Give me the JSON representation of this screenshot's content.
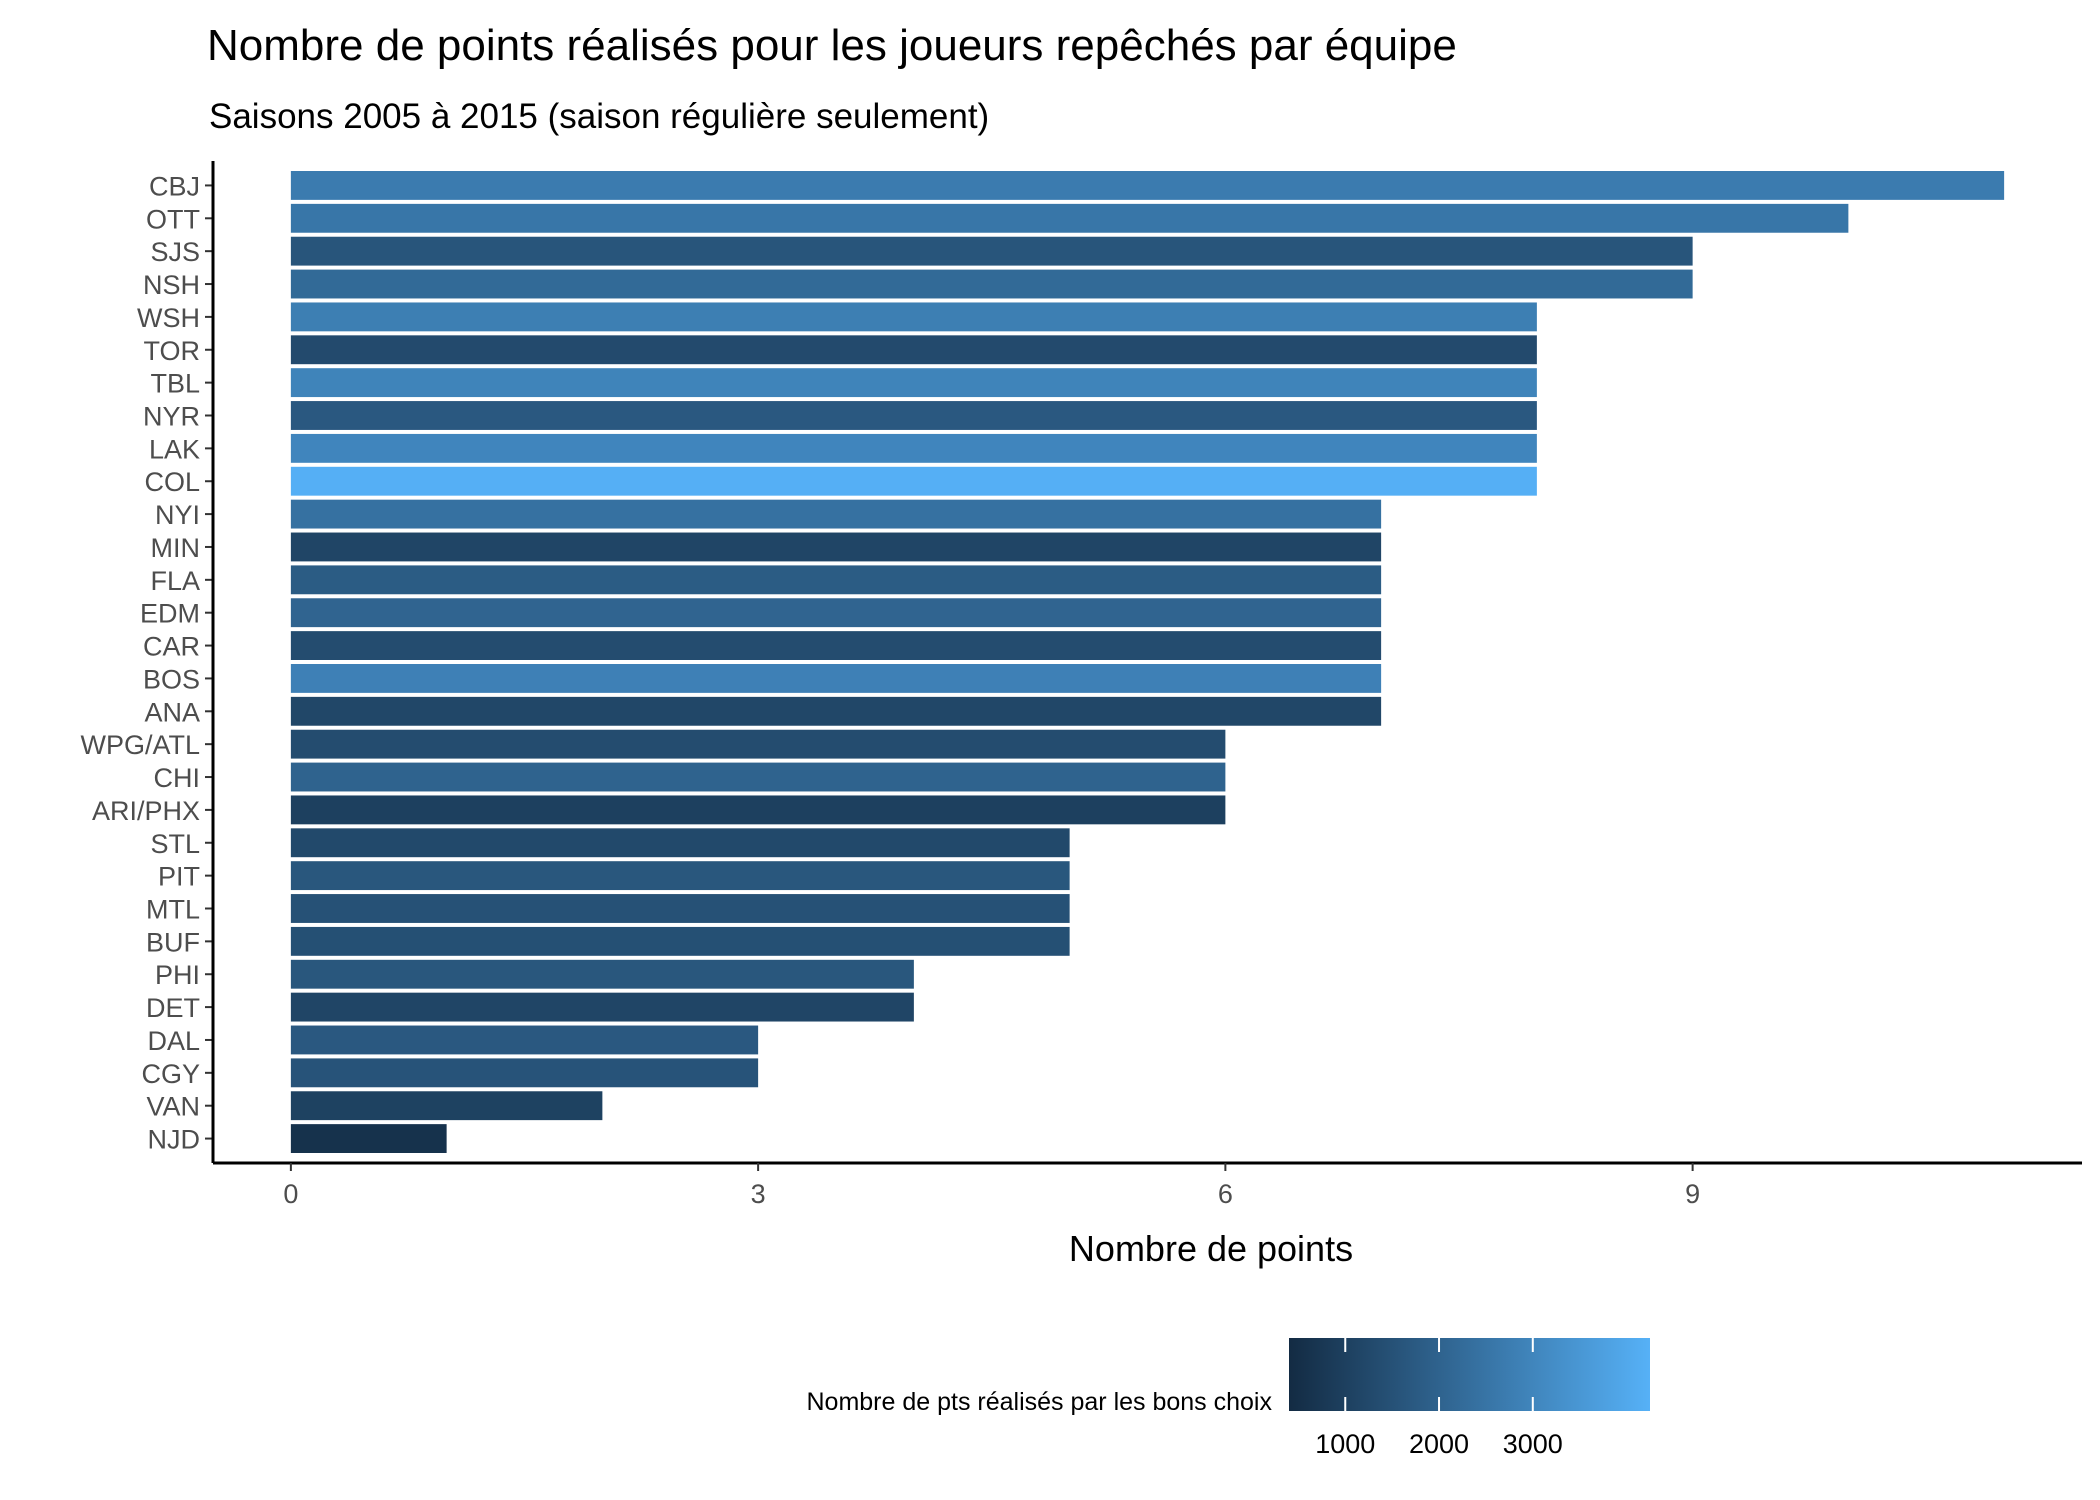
{
  "chart_data": {
    "type": "bar",
    "orientation": "horizontal",
    "title": "Nombre de points réalisés pour les joueurs repêchés par équipe",
    "subtitle": "Saisons 2005 à 2015 (saison régulière seulement)",
    "xlabel": "Nombre de points",
    "ylabel": "",
    "xlim": [
      -0.5,
      11.5
    ],
    "xticks": [
      0,
      3,
      6,
      9
    ],
    "grid": false,
    "categories": [
      "CBJ",
      "OTT",
      "SJS",
      "NSH",
      "WSH",
      "TOR",
      "TBL",
      "NYR",
      "LAK",
      "COL",
      "NYI",
      "MIN",
      "FLA",
      "EDM",
      "CAR",
      "BOS",
      "ANA",
      "WPG/ATL",
      "CHI",
      "ARI/PHX",
      "STL",
      "PIT",
      "MTL",
      "BUF",
      "PHI",
      "DET",
      "DAL",
      "CGY",
      "VAN",
      "NJD"
    ],
    "values": [
      11,
      10,
      9,
      9,
      8,
      8,
      8,
      8,
      8,
      8,
      7,
      7,
      7,
      7,
      7,
      7,
      7,
      6,
      6,
      6,
      5,
      5,
      5,
      5,
      4,
      4,
      3,
      3,
      2,
      1
    ],
    "fill_values": [
      2700,
      2550,
      1600,
      2200,
      2800,
      1300,
      2950,
      1700,
      3000,
      4200,
      2400,
      1150,
      1800,
      2050,
      1350,
      2850,
      1200,
      1350,
      2000,
      1000,
      1250,
      1650,
      1500,
      1450,
      1650,
      1150,
      1700,
      1550,
      1050,
      600
    ],
    "legend": {
      "title": "Nombre de pts réalisés par les bons choix",
      "position": "bottom",
      "ticks": [
        1000,
        2000,
        3000
      ],
      "range": [
        400,
        4250
      ],
      "low_color": "#132B43",
      "high_color": "#56B1F7"
    }
  }
}
